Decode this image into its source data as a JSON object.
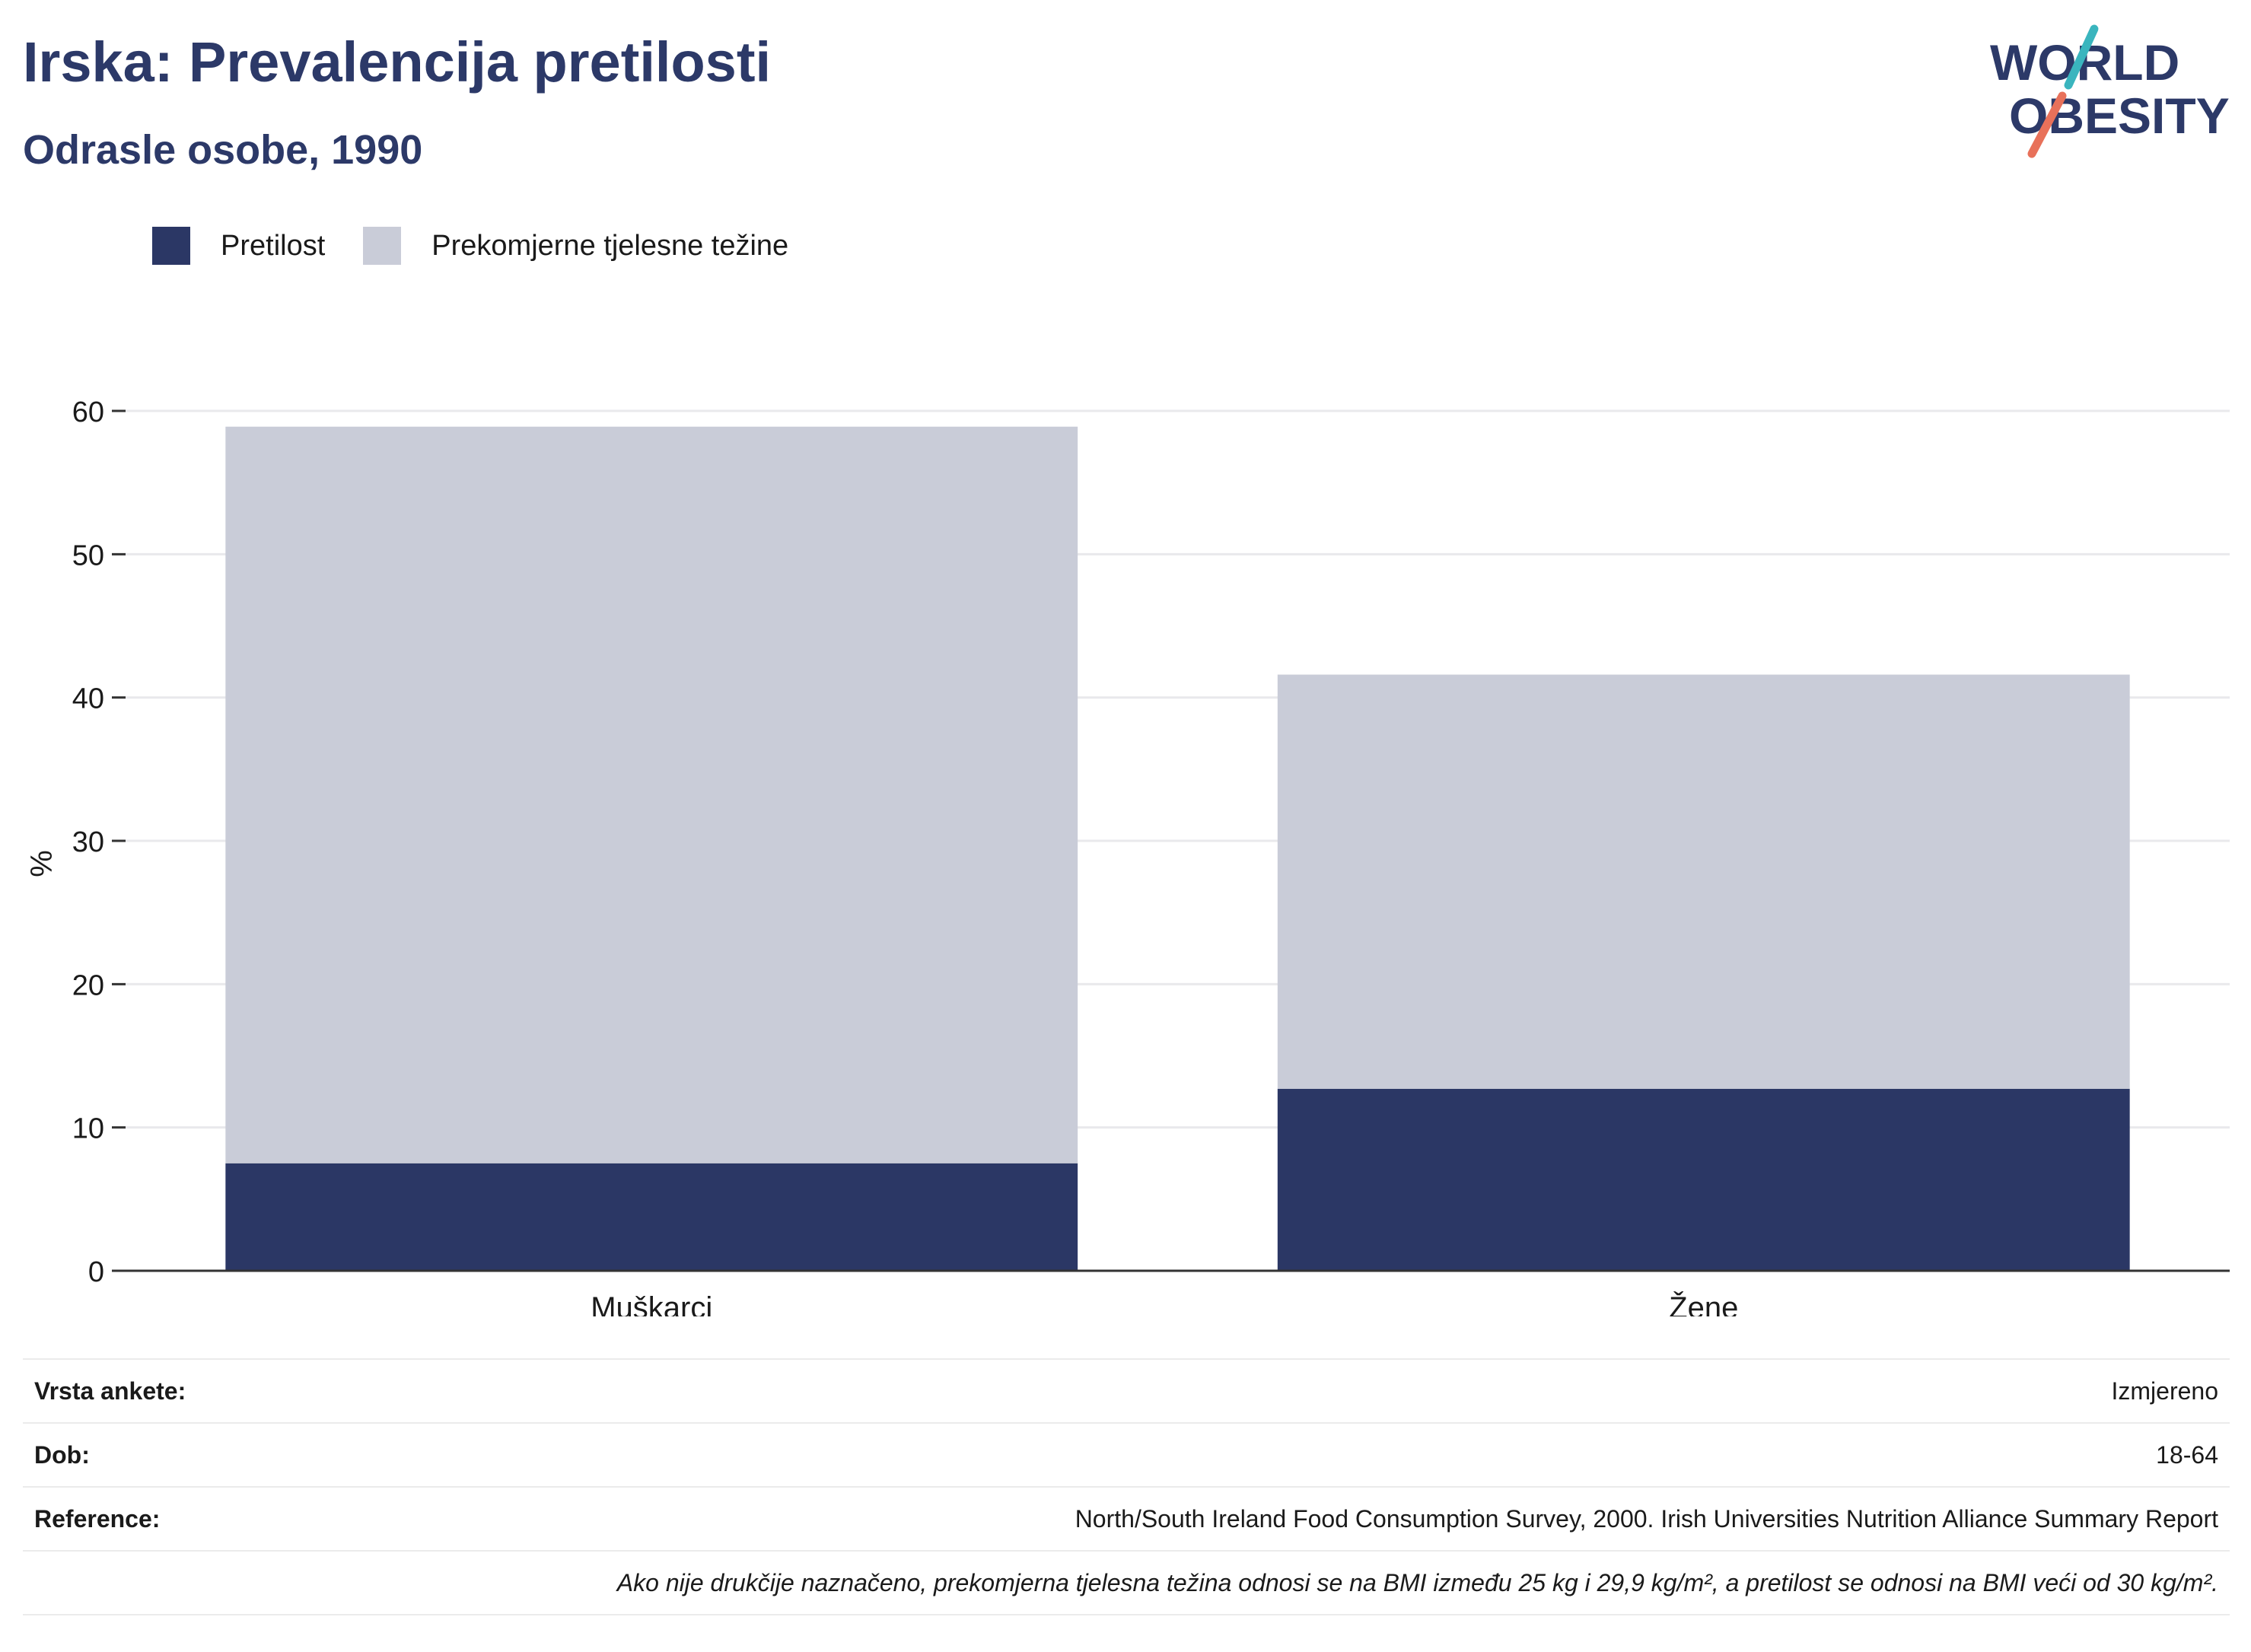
{
  "header": {
    "title": "Irska: Prevalencija pretilosti",
    "subtitle": "Odrasle osobe, 1990"
  },
  "logo": {
    "line1": "WORLD",
    "line2": "OBESITY",
    "colors": {
      "text": "#2c3968",
      "slash_top": "#3ab5be",
      "slash_bottom": "#e8715a"
    }
  },
  "legend": [
    {
      "label": "Pretilost",
      "color": "#2b3765"
    },
    {
      "label": "Prekomjerne tjelesne težine",
      "color": "#c9ccd8"
    }
  ],
  "chart_data": {
    "type": "bar",
    "stacked": true,
    "categories": [
      "Muškarci",
      "Žene"
    ],
    "series": [
      {
        "name": "Pretilost",
        "values": [
          7.5,
          12.7
        ],
        "color": "#2b3765"
      },
      {
        "name": "Prekomjerne tjelesne težine",
        "values": [
          51.4,
          28.9
        ],
        "color": "#c9ccd8"
      }
    ],
    "ylabel": "%",
    "ylim": [
      0,
      60
    ],
    "yticks": [
      0,
      10,
      20,
      30,
      40,
      50,
      60
    ],
    "grid": true,
    "legend_position": "top-left"
  },
  "info": {
    "rows": [
      {
        "label": "Vrsta ankete:",
        "value": "Izmjereno"
      },
      {
        "label": "Dob:",
        "value": "18-64"
      },
      {
        "label": "Reference:",
        "value": "North/South Ireland Food Consumption Survey, 2000. Irish Universities Nutrition Alliance Summary Report"
      }
    ],
    "note": "Ako nije drukčije naznačeno, prekomjerna tjelesna težina odnosi se na BMI između 25 kg i 29,9 kg/m², a pretilost se odnosi na BMI veći od 30 kg/m²."
  }
}
